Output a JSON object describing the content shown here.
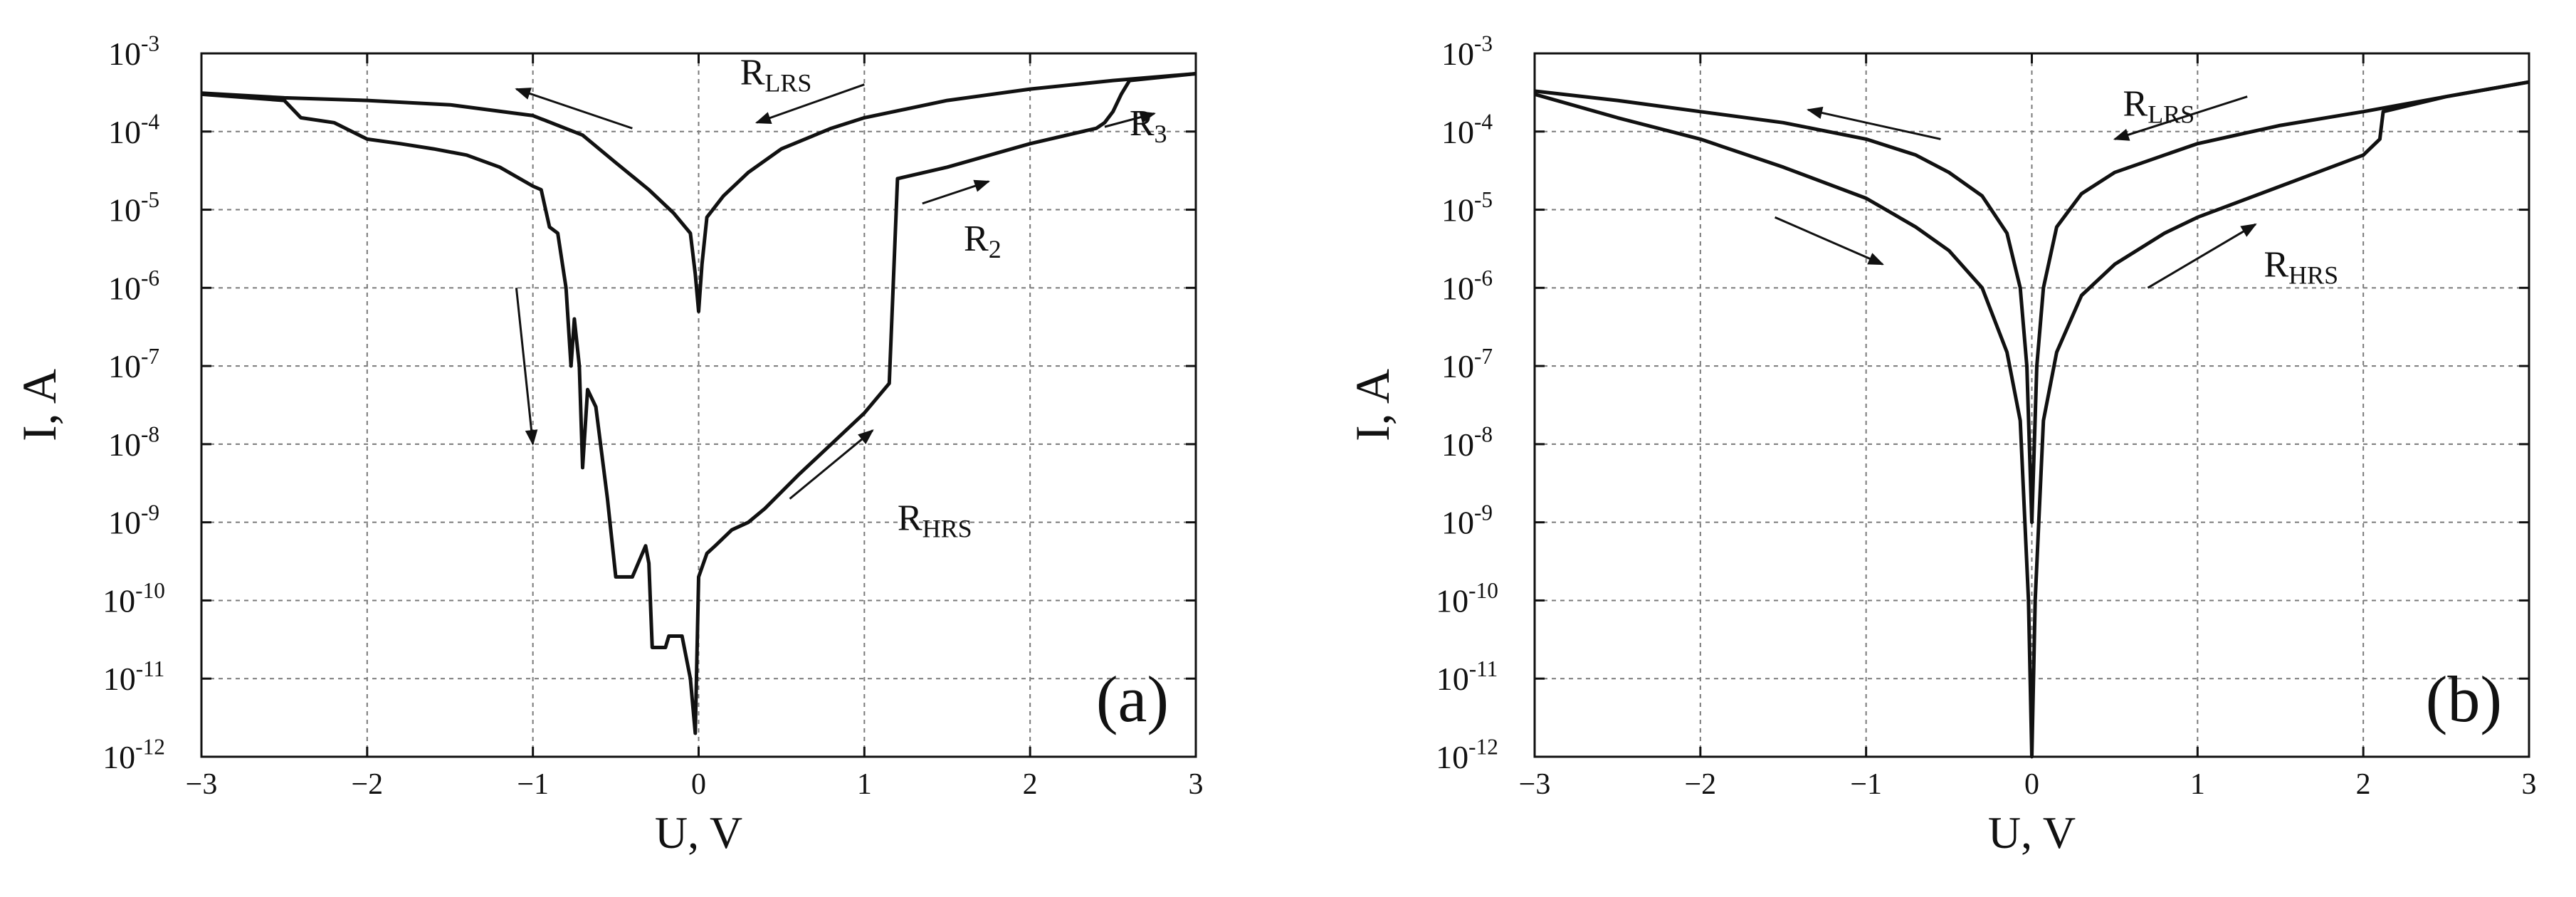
{
  "chart_data": [
    {
      "type": "line",
      "panel_label": "(a)",
      "xlabel": "U, V",
      "ylabel": "I, A",
      "xlim": [
        -3,
        3
      ],
      "ylim": [
        1e-12,
        0.001
      ],
      "yscale": "log",
      "grid": true,
      "x_ticks": [
        "−3",
        "−2",
        "−1",
        "0",
        "1",
        "2",
        "3"
      ],
      "y_ticks": [
        {
          "base": "10",
          "exp": "-3"
        },
        {
          "base": "10",
          "exp": "-4"
        },
        {
          "base": "10",
          "exp": "-5"
        },
        {
          "base": "10",
          "exp": "-6"
        },
        {
          "base": "10",
          "exp": "-7"
        },
        {
          "base": "10",
          "exp": "-8"
        },
        {
          "base": "10",
          "exp": "-9"
        },
        {
          "base": "10",
          "exp": "-10"
        },
        {
          "base": "10",
          "exp": "-11"
        },
        {
          "base": "10",
          "exp": "-12"
        }
      ],
      "curves": [
        {
          "id": "lrs",
          "points": [
            [
              -3,
              0.00031
            ],
            [
              -2.5,
              0.00027
            ],
            [
              -2.0,
              0.00025
            ],
            [
              -1.5,
              0.00022
            ],
            [
              -1.0,
              0.00016
            ],
            [
              -0.7,
              9e-05
            ],
            [
              -0.5,
              4e-05
            ],
            [
              -0.3,
              1.8e-05
            ],
            [
              -0.15,
              9e-06
            ],
            [
              -0.05,
              5e-06
            ],
            [
              -0.02,
              1.5e-06
            ],
            [
              0.0,
              5e-07
            ],
            [
              0.02,
              2e-06
            ],
            [
              0.05,
              8e-06
            ],
            [
              0.15,
              1.5e-05
            ],
            [
              0.3,
              3e-05
            ],
            [
              0.5,
              6e-05
            ],
            [
              0.8,
              0.00011
            ],
            [
              1.0,
              0.00015
            ],
            [
              1.5,
              0.00025
            ],
            [
              2.0,
              0.00035
            ],
            [
              2.5,
              0.00045
            ],
            [
              3.0,
              0.00055
            ]
          ]
        },
        {
          "id": "hrs",
          "points": [
            [
              -3,
              0.0003
            ],
            [
              -2.5,
              0.00025
            ],
            [
              -2.4,
              0.00015
            ],
            [
              -2.2,
              0.00013
            ],
            [
              -2.0,
              8e-05
            ],
            [
              -1.8,
              7e-05
            ],
            [
              -1.6,
              6e-05
            ],
            [
              -1.4,
              5e-05
            ],
            [
              -1.2,
              3.5e-05
            ],
            [
              -1.0,
              2e-05
            ],
            [
              -0.95,
              1.8e-05
            ],
            [
              -0.9,
              6e-06
            ],
            [
              -0.85,
              5e-06
            ],
            [
              -0.8,
              1e-06
            ],
            [
              -0.77,
              1e-07
            ],
            [
              -0.75,
              4e-07
            ],
            [
              -0.72,
              1e-07
            ],
            [
              -0.7,
              5e-09
            ],
            [
              -0.67,
              5e-08
            ],
            [
              -0.62,
              3e-08
            ],
            [
              -0.55,
              2e-09
            ],
            [
              -0.5,
              2e-10
            ],
            [
              -0.4,
              2e-10
            ],
            [
              -0.32,
              5e-10
            ],
            [
              -0.3,
              3e-10
            ],
            [
              -0.28,
              2.5e-11
            ],
            [
              -0.2,
              2.5e-11
            ],
            [
              -0.18,
              3.5e-11
            ],
            [
              -0.1,
              3.5e-11
            ],
            [
              -0.05,
              1e-11
            ],
            [
              -0.02,
              2e-12
            ],
            [
              0.0,
              2e-10
            ],
            [
              0.05,
              4e-10
            ],
            [
              0.1,
              5e-10
            ],
            [
              0.2,
              8e-10
            ],
            [
              0.3,
              1e-09
            ],
            [
              0.4,
              1.5e-09
            ],
            [
              0.6,
              4e-09
            ],
            [
              0.8,
              1e-08
            ],
            [
              1.0,
              2.5e-08
            ],
            [
              1.15,
              6e-08
            ],
            [
              1.2,
              2.5e-05
            ],
            [
              1.5,
              3.5e-05
            ],
            [
              2.0,
              7e-05
            ],
            [
              2.4,
              0.00011
            ],
            [
              2.45,
              0.00013
            ],
            [
              2.5,
              0.00018
            ],
            [
              2.55,
              0.0003
            ],
            [
              2.6,
              0.00045
            ],
            [
              3.0,
              0.00055
            ]
          ]
        }
      ],
      "annotations": [
        {
          "base": "R",
          "sub": "LRS",
          "x": 0.25,
          "y": 0.0004
        },
        {
          "base": "R",
          "sub": "HRS",
          "x": 1.2,
          "y": 8e-10
        },
        {
          "base": "R",
          "sub": "2",
          "x": 1.6,
          "y": 3e-06
        },
        {
          "base": "R",
          "sub": "3",
          "x": 2.6,
          "y": 9e-05
        }
      ],
      "arrows": [
        {
          "from": [
            -0.4,
            0.00011
          ],
          "to": [
            -1.1,
            0.00035
          ]
        },
        {
          "from": [
            1.0,
            0.0004
          ],
          "to": [
            0.35,
            0.00013
          ]
        },
        {
          "from": [
            -1.1,
            1e-06
          ],
          "to": [
            -1.0,
            1e-08
          ]
        },
        {
          "from": [
            0.55,
            2e-09
          ],
          "to": [
            1.05,
            1.5e-08
          ]
        },
        {
          "from": [
            1.35,
            1.2e-05
          ],
          "to": [
            1.75,
            2.3e-05
          ]
        },
        {
          "from": [
            2.45,
            0.000115
          ],
          "to": [
            2.75,
            0.00017
          ]
        }
      ]
    },
    {
      "type": "line",
      "panel_label": "(b)",
      "xlabel": "U, V",
      "ylabel": "I, A",
      "xlim": [
        -3,
        3
      ],
      "ylim": [
        1e-12,
        0.001
      ],
      "yscale": "log",
      "grid": true,
      "x_ticks": [
        "−3",
        "−2",
        "−1",
        "0",
        "1",
        "2",
        "3"
      ],
      "y_ticks": [
        {
          "base": "10",
          "exp": "-3"
        },
        {
          "base": "10",
          "exp": "-4"
        },
        {
          "base": "10",
          "exp": "-5"
        },
        {
          "base": "10",
          "exp": "-6"
        },
        {
          "base": "10",
          "exp": "-7"
        },
        {
          "base": "10",
          "exp": "-8"
        },
        {
          "base": "10",
          "exp": "-9"
        },
        {
          "base": "10",
          "exp": "-10"
        },
        {
          "base": "10",
          "exp": "-11"
        },
        {
          "base": "10",
          "exp": "-12"
        }
      ],
      "curves": [
        {
          "id": "lrs",
          "points": [
            [
              -3,
              0.00033
            ],
            [
              -2.5,
              0.00025
            ],
            [
              -2.0,
              0.00018
            ],
            [
              -1.5,
              0.00013
            ],
            [
              -1.0,
              8e-05
            ],
            [
              -0.7,
              5e-05
            ],
            [
              -0.5,
              3e-05
            ],
            [
              -0.3,
              1.5e-05
            ],
            [
              -0.15,
              5e-06
            ],
            [
              -0.07,
              1e-06
            ],
            [
              -0.03,
              1e-07
            ],
            [
              0.0,
              1e-09
            ],
            [
              0.03,
              1e-07
            ],
            [
              0.07,
              1e-06
            ],
            [
              0.15,
              6e-06
            ],
            [
              0.3,
              1.6e-05
            ],
            [
              0.5,
              3e-05
            ],
            [
              0.8,
              5e-05
            ],
            [
              1.0,
              7e-05
            ],
            [
              1.5,
              0.00012
            ],
            [
              2.0,
              0.00018
            ],
            [
              2.5,
              0.00028
            ],
            [
              3.0,
              0.00043
            ]
          ]
        },
        {
          "id": "hrs",
          "points": [
            [
              -3,
              0.0003
            ],
            [
              -2.5,
              0.00015
            ],
            [
              -2.0,
              8e-05
            ],
            [
              -1.5,
              3.5e-05
            ],
            [
              -1.0,
              1.4e-05
            ],
            [
              -0.7,
              6e-06
            ],
            [
              -0.5,
              3e-06
            ],
            [
              -0.3,
              1e-06
            ],
            [
              -0.15,
              1.5e-07
            ],
            [
              -0.07,
              2e-08
            ],
            [
              -0.02,
              1e-10
            ],
            [
              0.0,
              1e-12
            ],
            [
              0.02,
              1e-10
            ],
            [
              0.07,
              2e-08
            ],
            [
              0.15,
              1.5e-07
            ],
            [
              0.3,
              8e-07
            ],
            [
              0.5,
              2e-06
            ],
            [
              0.8,
              5e-06
            ],
            [
              1.0,
              8e-06
            ],
            [
              1.5,
              2e-05
            ],
            [
              2.0,
              5e-05
            ],
            [
              2.1,
              8e-05
            ],
            [
              2.12,
              0.00018
            ],
            [
              2.5,
              0.00028
            ],
            [
              3.0,
              0.00043
            ]
          ]
        }
      ],
      "annotations": [
        {
          "base": "R",
          "sub": "LRS",
          "x": 0.55,
          "y": 0.00016
        },
        {
          "base": "R",
          "sub": "HRS",
          "x": 1.4,
          "y": 1.4e-06
        }
      ],
      "arrows": [
        {
          "from": [
            -0.55,
            8e-05
          ],
          "to": [
            -1.35,
            0.00019
          ]
        },
        {
          "from": [
            1.3,
            0.00028
          ],
          "to": [
            0.5,
            8e-05
          ]
        },
        {
          "from": [
            -1.55,
            8e-06
          ],
          "to": [
            -0.9,
            2e-06
          ]
        },
        {
          "from": [
            0.7,
            1e-06
          ],
          "to": [
            1.35,
            6.5e-06
          ]
        }
      ]
    }
  ]
}
